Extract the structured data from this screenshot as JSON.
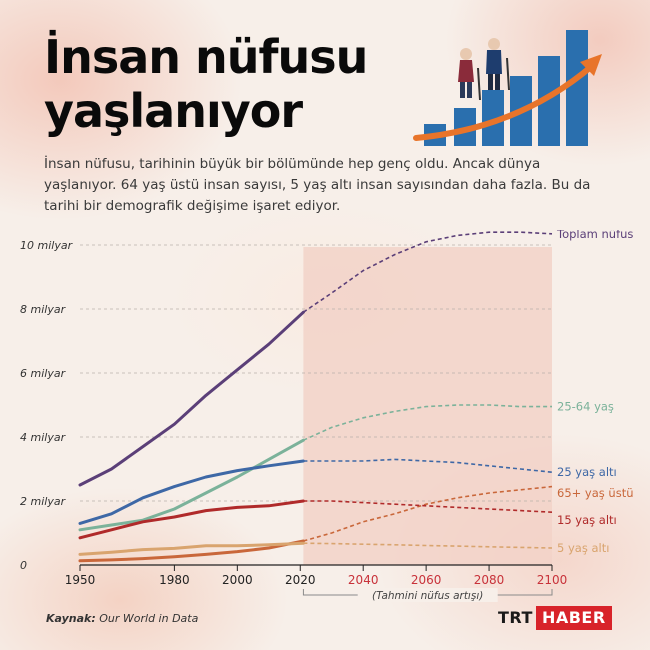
{
  "header": {
    "title_line1": "İnsan nüfusu",
    "title_line2": "yaşlanıyor",
    "intro": "İnsan nüfusu, tarihinin büyük bir bölümünde hep genç oldu. Ancak dünya yaşlanıyor. 64 yaş üstü insan sayısı, 5 yaş altı insan sayısından daha fazla. Bu da tarihi bir demografik değişime işaret ediyor."
  },
  "footer": {
    "source_label": "Kaynak:",
    "source_text": " Our World in Data",
    "logo_left": "TRT",
    "logo_right": "HABER"
  },
  "colors": {
    "projection_band": "#f2d2c8",
    "historical_tick": "#222222",
    "projected_tick": "#c8323a",
    "logo_red": "#d8232a"
  },
  "chart_data": {
    "type": "line",
    "title": "",
    "xlabel": "",
    "ylabel": "",
    "xlim": [
      1950,
      2100
    ],
    "ylim": [
      0,
      10
    ],
    "y_ticks": [
      0,
      2,
      4,
      6,
      8,
      10
    ],
    "y_tick_labels": [
      "0",
      "2 milyar",
      "4 milyar",
      "6 milyar",
      "8 milyar",
      "10 milyar"
    ],
    "x_ticks": [
      1950,
      1980,
      2000,
      2020,
      2040,
      2060,
      2080,
      2100
    ],
    "x_tick_labels": [
      "1950",
      "1980",
      "2000",
      "2020",
      "2040",
      "2060",
      "2080",
      "2100"
    ],
    "projection_start": 2021,
    "projection_label": "(Tahmini nüfus artışı)",
    "grid": "horizontal dashed",
    "legend": "direct labels on the right",
    "series": [
      {
        "name": "Toplam nüfus",
        "color": "#5b3f78",
        "historical": [
          [
            1950,
            2.5
          ],
          [
            1960,
            3.0
          ],
          [
            1970,
            3.7
          ],
          [
            1980,
            4.4
          ],
          [
            1990,
            5.3
          ],
          [
            2000,
            6.1
          ],
          [
            2010,
            6.9
          ],
          [
            2021,
            7.9
          ]
        ],
        "projected": [
          [
            2021,
            7.9
          ],
          [
            2030,
            8.5
          ],
          [
            2040,
            9.2
          ],
          [
            2050,
            9.7
          ],
          [
            2060,
            10.1
          ],
          [
            2070,
            10.3
          ],
          [
            2080,
            10.4
          ],
          [
            2090,
            10.4
          ],
          [
            2100,
            10.35
          ]
        ]
      },
      {
        "name": "25-64 yaş",
        "color": "#7bb29a",
        "historical": [
          [
            1950,
            1.1
          ],
          [
            1960,
            1.25
          ],
          [
            1970,
            1.4
          ],
          [
            1980,
            1.75
          ],
          [
            1990,
            2.25
          ],
          [
            2000,
            2.75
          ],
          [
            2010,
            3.3
          ],
          [
            2021,
            3.9
          ]
        ],
        "projected": [
          [
            2021,
            3.9
          ],
          [
            2030,
            4.3
          ],
          [
            2040,
            4.6
          ],
          [
            2050,
            4.8
          ],
          [
            2060,
            4.95
          ],
          [
            2070,
            5.0
          ],
          [
            2080,
            5.0
          ],
          [
            2090,
            4.95
          ],
          [
            2100,
            4.95
          ]
        ]
      },
      {
        "name": "25 yaş altı",
        "color": "#3e68a6",
        "historical": [
          [
            1950,
            1.3
          ],
          [
            1960,
            1.6
          ],
          [
            1970,
            2.1
          ],
          [
            1980,
            2.45
          ],
          [
            1990,
            2.75
          ],
          [
            2000,
            2.95
          ],
          [
            2010,
            3.1
          ],
          [
            2021,
            3.25
          ]
        ],
        "projected": [
          [
            2021,
            3.25
          ],
          [
            2030,
            3.25
          ],
          [
            2040,
            3.25
          ],
          [
            2050,
            3.3
          ],
          [
            2060,
            3.25
          ],
          [
            2070,
            3.2
          ],
          [
            2080,
            3.1
          ],
          [
            2090,
            3.0
          ],
          [
            2100,
            2.9
          ]
        ]
      },
      {
        "name": "65+ yaş üstü",
        "color": "#c9673a",
        "historical": [
          [
            1950,
            0.13
          ],
          [
            1960,
            0.16
          ],
          [
            1970,
            0.2
          ],
          [
            1980,
            0.26
          ],
          [
            1990,
            0.33
          ],
          [
            2000,
            0.42
          ],
          [
            2010,
            0.53
          ],
          [
            2021,
            0.75
          ]
        ],
        "projected": [
          [
            2021,
            0.75
          ],
          [
            2030,
            1.0
          ],
          [
            2040,
            1.35
          ],
          [
            2050,
            1.6
          ],
          [
            2060,
            1.9
          ],
          [
            2070,
            2.1
          ],
          [
            2080,
            2.25
          ],
          [
            2090,
            2.35
          ],
          [
            2100,
            2.45
          ]
        ]
      },
      {
        "name": "15 yaş altı",
        "color": "#b02a2a",
        "historical": [
          [
            1950,
            0.85
          ],
          [
            1960,
            1.1
          ],
          [
            1970,
            1.35
          ],
          [
            1980,
            1.5
          ],
          [
            1990,
            1.7
          ],
          [
            2000,
            1.8
          ],
          [
            2010,
            1.85
          ],
          [
            2021,
            2.0
          ]
        ],
        "projected": [
          [
            2021,
            2.0
          ],
          [
            2030,
            2.0
          ],
          [
            2040,
            1.95
          ],
          [
            2050,
            1.9
          ],
          [
            2060,
            1.85
          ],
          [
            2070,
            1.8
          ],
          [
            2080,
            1.75
          ],
          [
            2090,
            1.7
          ],
          [
            2100,
            1.65
          ]
        ]
      },
      {
        "name": "5 yaş altı",
        "color": "#d9a46e",
        "historical": [
          [
            1950,
            0.33
          ],
          [
            1960,
            0.4
          ],
          [
            1970,
            0.48
          ],
          [
            1980,
            0.52
          ],
          [
            1990,
            0.6
          ],
          [
            2000,
            0.6
          ],
          [
            2010,
            0.63
          ],
          [
            2021,
            0.68
          ]
        ],
        "projected": [
          [
            2021,
            0.68
          ],
          [
            2030,
            0.67
          ],
          [
            2040,
            0.65
          ],
          [
            2050,
            0.63
          ],
          [
            2060,
            0.61
          ],
          [
            2070,
            0.59
          ],
          [
            2080,
            0.57
          ],
          [
            2090,
            0.55
          ],
          [
            2100,
            0.53
          ]
        ]
      }
    ]
  }
}
